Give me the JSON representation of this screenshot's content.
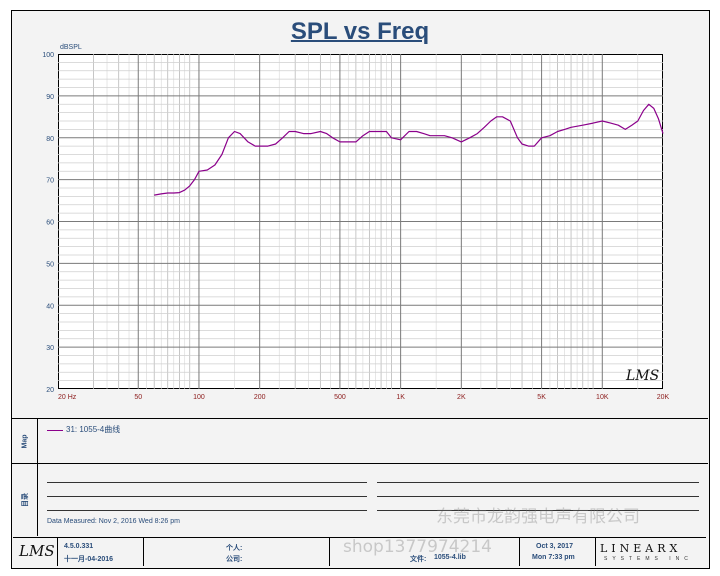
{
  "chart_data": {
    "type": "line",
    "title": "SPL vs Freq",
    "ylabel": "dBSPL",
    "xlabel": "",
    "x_scale": "log",
    "xlim": [
      20,
      20000
    ],
    "ylim": [
      20,
      100
    ],
    "y_ticks": [
      20,
      30,
      40,
      50,
      60,
      70,
      80,
      90,
      100
    ],
    "y_tick_labels": [
      "20",
      "30",
      "40",
      "50",
      "60",
      "70",
      "80",
      "90",
      "100"
    ],
    "x_ticks": [
      20,
      50,
      100,
      200,
      500,
      1000,
      2000,
      5000,
      10000,
      20000
    ],
    "x_tick_labels": [
      "20 Hz",
      "50",
      "100",
      "200",
      "500",
      "1K",
      "2K",
      "5K",
      "10K",
      "20K"
    ],
    "grid": true,
    "series_color": "#8b008b",
    "series": [
      {
        "name": "31: 1055-4曲线",
        "x": [
          60,
          65,
          70,
          75,
          80,
          85,
          90,
          95,
          100,
          110,
          120,
          130,
          140,
          150,
          160,
          175,
          190,
          200,
          220,
          240,
          260,
          280,
          300,
          330,
          360,
          400,
          430,
          460,
          500,
          550,
          600,
          650,
          700,
          750,
          800,
          850,
          900,
          1000,
          1100,
          1200,
          1300,
          1400,
          1500,
          1650,
          1800,
          2000,
          2200,
          2400,
          2600,
          2800,
          3000,
          3200,
          3500,
          3800,
          4000,
          4300,
          4600,
          5000,
          5500,
          6000,
          6500,
          7000,
          8000,
          9000,
          10000,
          11000,
          12000,
          13000,
          14000,
          15000,
          16000,
          17000,
          18000,
          19000,
          20000
        ],
        "y": [
          66.3,
          66.6,
          66.8,
          66.8,
          66.9,
          67.5,
          68.5,
          70,
          72,
          72.3,
          73.5,
          76,
          80,
          81.5,
          81,
          79,
          78,
          78,
          78,
          78.5,
          80,
          81.5,
          81.5,
          81,
          81,
          81.5,
          81,
          80,
          79,
          79,
          79,
          80.5,
          81.5,
          81.5,
          81.5,
          81.5,
          80,
          79.5,
          81.5,
          81.5,
          81,
          80.5,
          80.5,
          80.5,
          80,
          79,
          80,
          81,
          82.5,
          84,
          85,
          85,
          84,
          80,
          78.5,
          78,
          78,
          80,
          80.5,
          81.5,
          82,
          82.5,
          83,
          83.5,
          84,
          83.5,
          83,
          82,
          83,
          84,
          86.5,
          88,
          87,
          84.5,
          81
        ]
      }
    ]
  },
  "legend": {
    "entry": "31: 1055-4曲线"
  },
  "panels": {
    "legend_label": "Map",
    "notes_label": "目录"
  },
  "notes": {
    "measured": "Data Measured:  Nov  2, 2016  Wed  8:26 pm"
  },
  "footer": {
    "logo": "LMS",
    "version": "4.5.0.331",
    "date_cn": "十一月-04-2016",
    "person_label": "个人:",
    "company_label": "公司:",
    "file_label": "文件:",
    "file_name": "1055-4.lib",
    "date_right": "Oct  3, 2017",
    "time_right": "Mon  7:33 pm",
    "brand": "LINEARX",
    "brand_sub": "SYSTEMS INC"
  },
  "plot_logo": "LMS",
  "watermarks": {
    "company": "东莞市龙韵强电声有限公司",
    "shop": "shop1377974214"
  }
}
